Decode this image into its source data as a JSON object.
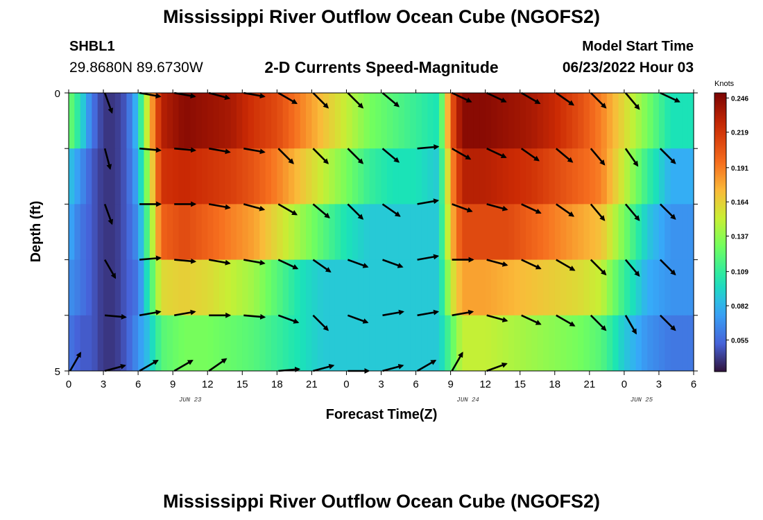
{
  "header": {
    "title": "Mississippi River Outflow Ocean Cube (NGOFS2)",
    "station": "SHBL1",
    "coords": "29.8680N  89.6730W",
    "subtitle": "2-D Currents Speed-Magnitude",
    "start_label": "Model Start Time",
    "start_value": "06/23/2022 Hour 03"
  },
  "footer": {
    "title": "Mississippi River Outflow Ocean Cube (NGOFS2)"
  },
  "chart_data": {
    "type": "heatmap",
    "title": "2-D Currents Speed-Magnitude",
    "xlabel": "Forecast Time(Z)",
    "ylabel": "Depth (ft)",
    "x_ticks": [
      "0",
      "3",
      "6",
      "9",
      "12",
      "15",
      "18",
      "21",
      "0",
      "3",
      "6",
      "9",
      "12",
      "15",
      "18",
      "21",
      "0",
      "3",
      "6"
    ],
    "x_range_hours": [
      0,
      54
    ],
    "date_labels": [
      {
        "label": "JUN 23",
        "hour": 10.5
      },
      {
        "label": "JUN 24",
        "hour": 34.5
      },
      {
        "label": "JUN 25",
        "hour": 49.5
      }
    ],
    "y_tick_labels": [
      {
        "label": "0",
        "depth": 0
      },
      {
        "label": "5",
        "depth": 5
      }
    ],
    "y_range_ft": [
      0,
      5
    ],
    "depth_layers_ft": [
      0.5,
      1.5,
      2.5,
      3.5,
      4.5
    ],
    "colorbar": {
      "unit": "Knots",
      "ticks": [
        0.055,
        0.082,
        0.109,
        0.137,
        0.164,
        0.191,
        0.219,
        0.246
      ],
      "range": [
        0.03,
        0.25
      ]
    },
    "speed_by_layer": [
      {
        "depth": 0.5,
        "hours": [
          0,
          1,
          2,
          3,
          4,
          5,
          6,
          7,
          8,
          10,
          12,
          14,
          16,
          18,
          20,
          22,
          24,
          26,
          28,
          30,
          32,
          33,
          34,
          36,
          38,
          40,
          42,
          44,
          46,
          48,
          50,
          52,
          54
        ],
        "values": [
          0.13,
          0.1,
          0.06,
          0.04,
          0.04,
          0.05,
          0.09,
          0.17,
          0.23,
          0.245,
          0.24,
          0.235,
          0.22,
          0.21,
          0.19,
          0.17,
          0.15,
          0.13,
          0.12,
          0.11,
          0.1,
          0.2,
          0.245,
          0.245,
          0.24,
          0.235,
          0.225,
          0.21,
          0.19,
          0.16,
          0.13,
          0.1,
          0.1
        ]
      },
      {
        "depth": 1.5,
        "hours": [
          0,
          1,
          2,
          3,
          4,
          5,
          6,
          7,
          8,
          10,
          12,
          14,
          16,
          18,
          20,
          22,
          24,
          26,
          28,
          30,
          32,
          33,
          34,
          36,
          38,
          40,
          42,
          44,
          46,
          48,
          50,
          52,
          54
        ],
        "values": [
          0.09,
          0.07,
          0.05,
          0.04,
          0.04,
          0.05,
          0.08,
          0.15,
          0.22,
          0.225,
          0.22,
          0.215,
          0.205,
          0.19,
          0.17,
          0.15,
          0.13,
          0.11,
          0.1,
          0.1,
          0.09,
          0.18,
          0.23,
          0.23,
          0.225,
          0.22,
          0.21,
          0.2,
          0.19,
          0.15,
          0.11,
          0.08,
          0.08
        ]
      },
      {
        "depth": 2.5,
        "hours": [
          0,
          1,
          2,
          3,
          4,
          5,
          6,
          7,
          8,
          10,
          12,
          14,
          16,
          18,
          20,
          22,
          24,
          26,
          28,
          30,
          32,
          33,
          34,
          36,
          38,
          40,
          42,
          44,
          46,
          48,
          50,
          52,
          54
        ],
        "values": [
          0.08,
          0.06,
          0.05,
          0.04,
          0.04,
          0.05,
          0.07,
          0.13,
          0.2,
          0.21,
          0.2,
          0.19,
          0.18,
          0.16,
          0.14,
          0.12,
          0.1,
          0.09,
          0.09,
          0.09,
          0.09,
          0.17,
          0.21,
          0.21,
          0.21,
          0.2,
          0.19,
          0.18,
          0.17,
          0.13,
          0.09,
          0.07,
          0.07
        ]
      },
      {
        "depth": 3.5,
        "hours": [
          0,
          1,
          2,
          3,
          4,
          5,
          6,
          7,
          8,
          10,
          12,
          14,
          16,
          18,
          20,
          22,
          24,
          26,
          28,
          30,
          32,
          33,
          34,
          36,
          38,
          40,
          42,
          44,
          46,
          48,
          50,
          52,
          54
        ],
        "values": [
          0.07,
          0.06,
          0.05,
          0.04,
          0.04,
          0.05,
          0.06,
          0.11,
          0.16,
          0.165,
          0.16,
          0.15,
          0.14,
          0.12,
          0.1,
          0.09,
          0.09,
          0.09,
          0.09,
          0.09,
          0.09,
          0.15,
          0.18,
          0.18,
          0.175,
          0.17,
          0.165,
          0.16,
          0.15,
          0.11,
          0.08,
          0.07,
          0.07
        ]
      },
      {
        "depth": 4.5,
        "hours": [
          0,
          1,
          2,
          3,
          4,
          5,
          6,
          7,
          8,
          10,
          12,
          14,
          16,
          18,
          20,
          22,
          24,
          26,
          28,
          30,
          32,
          33,
          34,
          36,
          38,
          40,
          42,
          44,
          46,
          48,
          50,
          52,
          54
        ],
        "values": [
          0.06,
          0.05,
          0.05,
          0.04,
          0.04,
          0.05,
          0.07,
          0.09,
          0.12,
          0.13,
          0.13,
          0.125,
          0.12,
          0.11,
          0.1,
          0.09,
          0.09,
          0.09,
          0.09,
          0.09,
          0.09,
          0.12,
          0.15,
          0.15,
          0.145,
          0.14,
          0.135,
          0.13,
          0.12,
          0.09,
          0.07,
          0.06,
          0.06
        ]
      },
      {
        "depth": 5.0,
        "hours": [
          0,
          1,
          2,
          3,
          4,
          5,
          6,
          7,
          8,
          10,
          12,
          14,
          16,
          18,
          20,
          22,
          24,
          26,
          28,
          30,
          32,
          33,
          34,
          36,
          38,
          40,
          42,
          44,
          46,
          48,
          50,
          52,
          54
        ],
        "values": [
          0.06,
          0.05,
          0.04,
          0.03,
          0.03,
          0.04,
          0.06,
          0.07,
          0.08,
          0.09,
          0.09,
          0.09,
          0.09,
          0.09,
          0.09,
          0.09,
          0.09,
          0.09,
          0.09,
          0.09,
          0.09,
          0.1,
          0.12,
          0.12,
          0.12,
          0.115,
          0.11,
          0.1,
          0.09,
          0.07,
          0.06,
          0.06,
          0.06
        ]
      }
    ],
    "vectors": {
      "hours": [
        0,
        3,
        6,
        9,
        12,
        15,
        18,
        21,
        24,
        27,
        30,
        33,
        36,
        39,
        42,
        45,
        48,
        51
      ],
      "directions_deg": [
        [
          null,
          160,
          100,
          100,
          105,
          100,
          120,
          135,
          135,
          130,
          null,
          115,
          115,
          120,
          125,
          135,
          140,
          115
        ],
        [
          null,
          165,
          95,
          95,
          100,
          100,
          135,
          135,
          135,
          130,
          85,
          120,
          115,
          125,
          130,
          140,
          145,
          135
        ],
        [
          null,
          160,
          90,
          90,
          100,
          105,
          120,
          130,
          135,
          125,
          80,
          110,
          105,
          115,
          125,
          140,
          140,
          135
        ],
        [
          null,
          150,
          85,
          95,
          100,
          100,
          115,
          125,
          110,
          110,
          80,
          90,
          105,
          115,
          120,
          135,
          140,
          135
        ],
        [
          null,
          95,
          80,
          80,
          90,
          95,
          110,
          135,
          110,
          80,
          80,
          80,
          105,
          115,
          120,
          135,
          150,
          135
        ],
        [
          30,
          75,
          60,
          60,
          55,
          null,
          85,
          75,
          90,
          75,
          60,
          30,
          70,
          null,
          null,
          null,
          null,
          null
        ]
      ]
    }
  }
}
